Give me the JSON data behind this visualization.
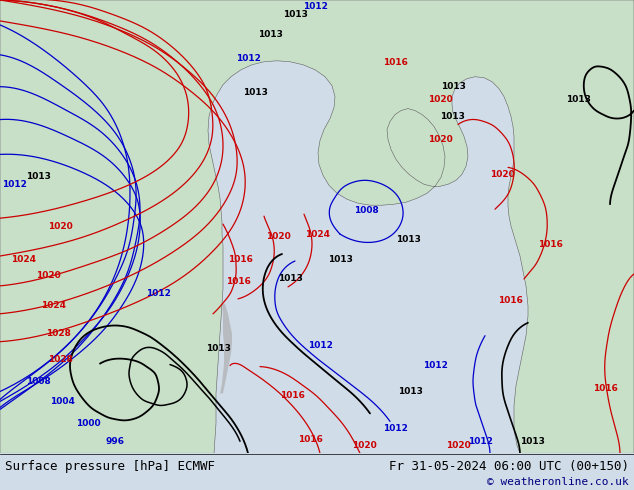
{
  "title_left": "Surface pressure [hPa] ECMWF",
  "title_right": "Fr 31-05-2024 06:00 UTC (00+150)",
  "copyright": "© weatheronline.co.uk",
  "ocean_color": "#d0dce8",
  "land_color": "#c8dfc8",
  "coast_color": "#b0b0b0",
  "border_color": "#606060",
  "bottom_bar_color": "#ffffff",
  "copyright_color": "#000080",
  "isobar_blue": "#0000cc",
  "isobar_red": "#cc0000",
  "isobar_black": "#000000",
  "figsize": [
    6.34,
    4.9
  ],
  "dpi": 100
}
